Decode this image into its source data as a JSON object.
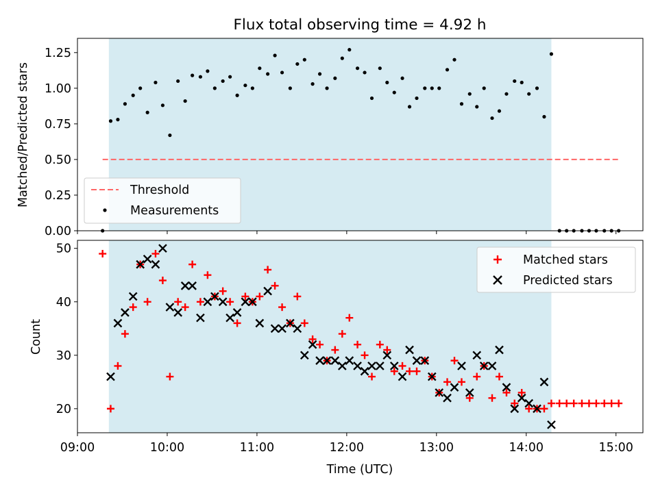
{
  "figure_title": "Flux total observing time = 4.92 h",
  "colors": {
    "shade": "#add8e6",
    "threshold": "#ff6666",
    "measurement": "#000000",
    "matched": "#ff0000",
    "predicted": "#000000"
  },
  "chart_data": [
    {
      "type": "scatter",
      "panel": "top",
      "title": "Flux total observing time = 4.92 h",
      "xlabel": "",
      "ylabel": "Matched/Predicted stars",
      "xlim": [
        9.0,
        15.3
      ],
      "ylim": [
        0.0,
        1.35
      ],
      "yticks": [
        0.0,
        0.25,
        0.5,
        0.75,
        1.0,
        1.25
      ],
      "ytick_labels": [
        "0.00",
        "0.25",
        "0.50",
        "0.75",
        "1.00",
        "1.25"
      ],
      "shaded_span": [
        9.35,
        14.28
      ],
      "legend": {
        "position": "lower-left",
        "entries": [
          "Threshold",
          "Measurements"
        ]
      },
      "threshold": {
        "name": "Threshold",
        "x": [
          9.28,
          15.03
        ],
        "y": 0.5,
        "style": "dashed"
      },
      "series": [
        {
          "name": "Measurements",
          "marker": "dot",
          "x": [
            9.28,
            9.37,
            9.45,
            9.53,
            9.62,
            9.7,
            9.78,
            9.87,
            9.95,
            10.03,
            10.12,
            10.2,
            10.28,
            10.37,
            10.45,
            10.53,
            10.62,
            10.7,
            10.78,
            10.87,
            10.95,
            11.03,
            11.12,
            11.2,
            11.28,
            11.37,
            11.45,
            11.53,
            11.62,
            11.7,
            11.78,
            11.87,
            11.95,
            12.03,
            12.12,
            12.2,
            12.28,
            12.37,
            12.45,
            12.53,
            12.62,
            12.7,
            12.78,
            12.87,
            12.95,
            13.03,
            13.12,
            13.2,
            13.28,
            13.37,
            13.45,
            13.53,
            13.62,
            13.7,
            13.78,
            13.87,
            13.95,
            14.03,
            14.12,
            14.2,
            14.28,
            14.37,
            14.45,
            14.53,
            14.62,
            14.7,
            14.78,
            14.87,
            14.95,
            15.03
          ],
          "y": [
            0.0,
            0.77,
            0.78,
            0.89,
            0.95,
            1.0,
            0.83,
            1.04,
            0.88,
            0.67,
            1.05,
            0.91,
            1.09,
            1.08,
            1.12,
            1.0,
            1.05,
            1.08,
            0.95,
            1.02,
            1.0,
            1.14,
            1.1,
            1.23,
            1.11,
            1.0,
            1.17,
            1.2,
            1.03,
            1.1,
            1.0,
            1.07,
            1.21,
            1.27,
            1.14,
            1.11,
            0.93,
            1.14,
            1.04,
            0.97,
            1.07,
            0.87,
            0.93,
            1.0,
            1.0,
            1.0,
            1.13,
            1.2,
            0.89,
            0.96,
            0.87,
            1.0,
            0.79,
            0.84,
            0.96,
            1.05,
            1.04,
            0.96,
            1.0,
            0.8,
            1.24,
            0.0,
            0.0,
            0.0,
            0.0,
            0.0,
            0.0,
            0.0,
            0.0,
            0.0
          ]
        }
      ]
    },
    {
      "type": "scatter",
      "panel": "bottom",
      "title": "",
      "xlabel": "Time (UTC)",
      "ylabel": "Count",
      "xlim": [
        9.0,
        15.3
      ],
      "ylim": [
        15.5,
        51.5
      ],
      "yticks": [
        20,
        30,
        40,
        50
      ],
      "ytick_labels": [
        "20",
        "30",
        "40",
        "50"
      ],
      "xticks": [
        9,
        10,
        11,
        12,
        13,
        14,
        15
      ],
      "xtick_labels": [
        "09:00",
        "10:00",
        "11:00",
        "12:00",
        "13:00",
        "14:00",
        "15:00"
      ],
      "shaded_span": [
        9.35,
        14.28
      ],
      "legend": {
        "position": "top-right",
        "entries": [
          "Matched stars",
          "Predicted stars"
        ]
      },
      "series": [
        {
          "name": "Matched stars",
          "marker": "plus",
          "x": [
            9.28,
            9.37,
            9.45,
            9.53,
            9.62,
            9.7,
            9.78,
            9.87,
            9.95,
            10.03,
            10.12,
            10.2,
            10.28,
            10.37,
            10.45,
            10.53,
            10.62,
            10.7,
            10.78,
            10.87,
            10.95,
            11.03,
            11.12,
            11.2,
            11.28,
            11.37,
            11.45,
            11.53,
            11.62,
            11.7,
            11.78,
            11.87,
            11.95,
            12.03,
            12.12,
            12.2,
            12.28,
            12.37,
            12.45,
            12.53,
            12.62,
            12.7,
            12.78,
            12.87,
            12.95,
            13.03,
            13.12,
            13.2,
            13.28,
            13.37,
            13.45,
            13.53,
            13.62,
            13.7,
            13.78,
            13.87,
            13.95,
            14.03,
            14.12,
            14.2,
            14.28,
            14.37,
            14.45,
            14.53,
            14.62,
            14.7,
            14.78,
            14.87,
            14.95,
            15.03
          ],
          "y": [
            49,
            20,
            28,
            34,
            39,
            47,
            40,
            49,
            44,
            26,
            40,
            39,
            47,
            40,
            45,
            41,
            42,
            40,
            36,
            41,
            40,
            41,
            46,
            43,
            39,
            36,
            41,
            36,
            33,
            32,
            29,
            31,
            34,
            37,
            32,
            30,
            26,
            32,
            31,
            27,
            28,
            27,
            27,
            29,
            26,
            23,
            25,
            29,
            25,
            22,
            26,
            28,
            22,
            26,
            23,
            21,
            23,
            20,
            20,
            20,
            21,
            21,
            21,
            21,
            21,
            21,
            21,
            21,
            21,
            21
          ]
        },
        {
          "name": "Predicted stars",
          "marker": "x",
          "x": [
            9.37,
            9.45,
            9.53,
            9.62,
            9.7,
            9.78,
            9.87,
            9.95,
            10.03,
            10.12,
            10.2,
            10.28,
            10.37,
            10.45,
            10.53,
            10.62,
            10.7,
            10.78,
            10.87,
            10.95,
            11.03,
            11.12,
            11.2,
            11.28,
            11.37,
            11.45,
            11.53,
            11.62,
            11.7,
            11.78,
            11.87,
            11.95,
            12.03,
            12.12,
            12.2,
            12.28,
            12.37,
            12.45,
            12.53,
            12.62,
            12.7,
            12.78,
            12.87,
            12.95,
            13.03,
            13.12,
            13.2,
            13.28,
            13.37,
            13.45,
            13.53,
            13.62,
            13.7,
            13.78,
            13.87,
            13.95,
            14.03,
            14.12,
            14.2,
            14.28
          ],
          "y": [
            26,
            36,
            38,
            41,
            47,
            48,
            47,
            50,
            39,
            38,
            43,
            43,
            37,
            40,
            41,
            40,
            37,
            38,
            40,
            40,
            36,
            42,
            35,
            35,
            36,
            35,
            30,
            32,
            29,
            29,
            29,
            28,
            29,
            28,
            27,
            28,
            28,
            30,
            28,
            26,
            31,
            29,
            29,
            26,
            23,
            22,
            24,
            28,
            23,
            30,
            28,
            28,
            31,
            24,
            20,
            22,
            21,
            20,
            25,
            17
          ]
        }
      ]
    }
  ]
}
